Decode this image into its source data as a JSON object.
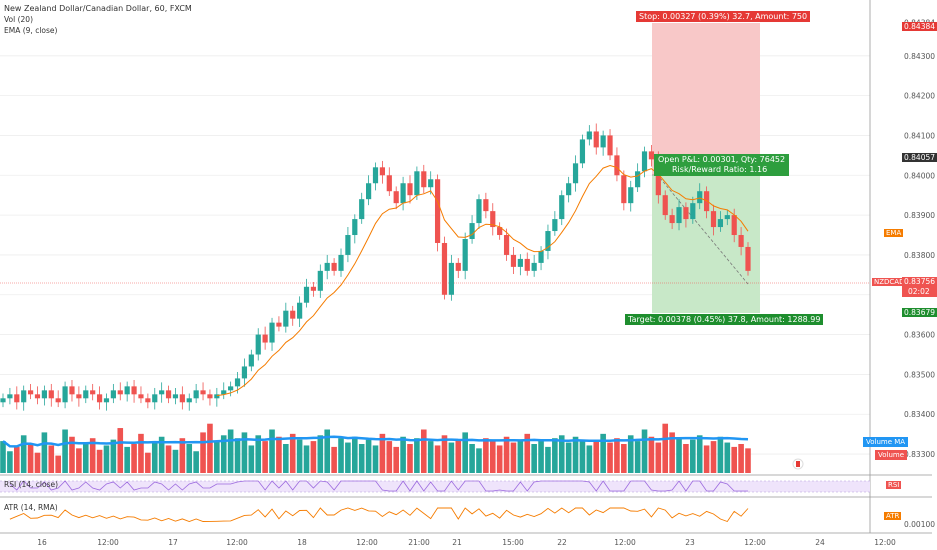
{
  "legend": {
    "symbol": "New Zealand Dollar/Canadian Dollar, 60, FXCM",
    "vol": "Vol (20)",
    "ema": "EMA (9, close)"
  },
  "rsi_pane": {
    "title": "RSI (14, close)",
    "tag": "RSI"
  },
  "atr_pane": {
    "title": "ATR (14, RMA)",
    "tag": "ATR",
    "tick": "0.00100"
  },
  "price_axis": {
    "ticks": [
      "0.84384",
      "0.84300",
      "0.84200",
      "0.84100",
      "0.84057",
      "0.84000",
      "0.83900",
      "0.83800",
      "0.83756",
      "02:02",
      "0.83679",
      "0.83600",
      "0.83500",
      "0.83400",
      "0.83300"
    ],
    "ema_tag": "EMA",
    "symbol_tag": "NZDCAD",
    "volume_ma_tag": "Volume MA",
    "volume_tag": "Volume"
  },
  "position": {
    "stop": "Stop: 0.00327 (0.39%) 32.7, Amount: 750",
    "open_pl": "Open P&L: 0.00301, Qty: 76452",
    "ratio": "Risk/Reward Ratio: 1.16",
    "target": "Target: 0.00378 (0.45%) 37.8, Amount: 1288.99"
  },
  "time_axis": [
    "16",
    "12:00",
    "17",
    "12:00",
    "18",
    "12:00",
    "21:00",
    "21",
    "15:00",
    "22",
    "12:00",
    "23",
    "12:00",
    "24",
    "12:00"
  ],
  "colors": {
    "up": "#26a69a",
    "down": "#ef5350",
    "ema": "#f57c00",
    "volume_ma": "#2196f3",
    "stop_zone": "#f8c8c8",
    "target_zone": "#c8e8c8"
  },
  "chart_data": {
    "type": "candlestick",
    "title": "New Zealand Dollar/Canadian Dollar, 60, FXCM",
    "ylim": [
      0.8326,
      0.8442
    ],
    "last_price": 0.83756,
    "entry_price": 0.84057,
    "stop_price": 0.84384,
    "target_price": 0.83679,
    "ohlc_close": [
      0.8344,
      0.8345,
      0.8343,
      0.8346,
      0.8345,
      0.8344,
      0.8346,
      0.8344,
      0.8343,
      0.8347,
      0.8345,
      0.8344,
      0.8346,
      0.8345,
      0.8343,
      0.8344,
      0.8346,
      0.8345,
      0.8347,
      0.8345,
      0.8344,
      0.8343,
      0.8345,
      0.8346,
      0.8344,
      0.8345,
      0.8343,
      0.8344,
      0.8346,
      0.8345,
      0.8344,
      0.8345,
      0.8346,
      0.8347,
      0.8349,
      0.8352,
      0.8355,
      0.836,
      0.8358,
      0.8363,
      0.8362,
      0.8366,
      0.8364,
      0.8368,
      0.8372,
      0.8371,
      0.8376,
      0.8378,
      0.8376,
      0.838,
      0.8385,
      0.8389,
      0.8394,
      0.8398,
      0.8402,
      0.84,
      0.8396,
      0.8393,
      0.8398,
      0.8395,
      0.8401,
      0.8397,
      0.8399,
      0.8383,
      0.837,
      0.8378,
      0.8376,
      0.8384,
      0.8388,
      0.8394,
      0.8391,
      0.8387,
      0.8385,
      0.838,
      0.8377,
      0.8379,
      0.8376,
      0.8378,
      0.8381,
      0.8386,
      0.8389,
      0.8395,
      0.8398,
      0.8403,
      0.8409,
      0.8411,
      0.8407,
      0.841,
      0.8405,
      0.84,
      0.8393,
      0.8397,
      0.8401,
      0.8406,
      0.8404,
      0.8395,
      0.839,
      0.8388,
      0.8392,
      0.8389,
      0.8393,
      0.8396,
      0.8391,
      0.8387,
      0.8389,
      0.839,
      0.8385,
      0.8382,
      0.8376
    ],
    "volume": [
      22,
      15,
      18,
      26,
      20,
      14,
      28,
      19,
      12,
      30,
      25,
      17,
      21,
      24,
      16,
      19,
      23,
      31,
      18,
      20,
      27,
      14,
      22,
      25,
      19,
      16,
      24,
      20,
      15,
      28,
      34,
      22,
      26,
      30,
      24,
      28,
      19,
      26,
      22,
      30,
      25,
      20,
      27,
      23,
      19,
      22,
      26,
      30,
      18,
      24,
      21,
      25,
      20,
      23,
      19,
      27,
      22,
      18,
      25,
      20,
      24,
      30,
      22,
      19,
      26,
      21,
      23,
      28,
      20,
      17,
      24,
      22,
      19,
      25,
      21,
      23,
      27,
      20,
      22,
      18,
      24,
      26,
      21,
      25,
      22,
      19,
      23,
      27,
      21,
      24,
      20,
      26,
      22,
      30,
      25,
      21,
      34,
      28,
      24,
      20,
      23,
      26,
      19,
      22,
      25,
      21,
      18,
      20,
      17
    ]
  }
}
